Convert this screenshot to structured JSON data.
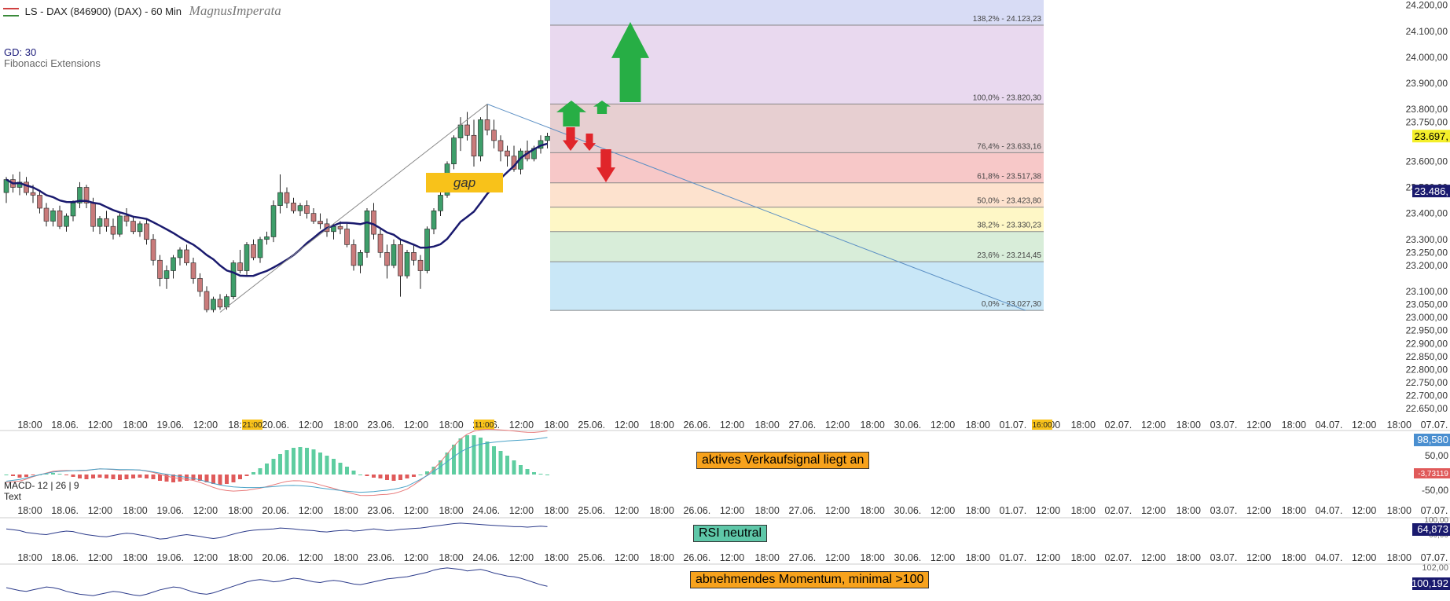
{
  "header": {
    "title": "LS - DAX (846900) (DAX) - 60 Min",
    "brand": "MagnusImperata",
    "indicator_gd": "GD: 30",
    "indicator_fib": "Fibonacci Extensions"
  },
  "annotations": {
    "gap": "gap",
    "sell_signal": "aktives Verkaufsignal liegt an",
    "rsi_note": "RSI neutral",
    "momentum_note": "abnehmendes Momentum, minimal >100"
  },
  "colors": {
    "up_candle": "#3e9e6a",
    "down_candle": "#c97b7b",
    "ma_line": "#1a1a6e",
    "fib_top": "#d8dcf5",
    "fib_100": "#e9d9ef",
    "fib_764": "#e7cfd1",
    "fib_618": "#f7c8c8",
    "fib_500": "#fde2ce",
    "fib_382": "#fef7c6",
    "fib_236": "#d8edd9",
    "fib_0": "#c9e7f7",
    "sell_note_bg": "#f7a21c",
    "rsi_note_bg": "#5ec7a8",
    "momentum_note_bg": "#f7a21c",
    "arrow_up": "#27ae45",
    "arrow_down": "#e0252a"
  },
  "chart_data": {
    "type": "candlestick",
    "price_axis": {
      "ticks": [
        "24.200,00",
        "24.100,00",
        "24.000,00",
        "23.900,00",
        "23.800,00",
        "23.750,00",
        "23.600,00",
        "23.500,00",
        "23.400,00",
        "23.300,00",
        "23.250,00",
        "23.200,00",
        "23.100,00",
        "23.050,00",
        "23.000,00",
        "22.950,00",
        "22.900,00",
        "22.850,00",
        "22.800,00",
        "22.750,00",
        "22.700,00",
        "22.650,00"
      ],
      "tick_values": [
        24200,
        24100,
        24000,
        23900,
        23800,
        23750,
        23600,
        23500,
        23400,
        23300,
        23250,
        23200,
        23100,
        23050,
        23000,
        22950,
        22900,
        22850,
        22800,
        22750,
        22700,
        22650
      ],
      "range": [
        22620,
        24220
      ],
      "last_price": "23.697,",
      "ma_value": "23.486,"
    },
    "time_axis": [
      "18:00",
      "18.06.",
      "12:00",
      "18:00",
      "19.06.",
      "12:00",
      "18:00",
      "20.06.",
      "12:00",
      "18:00",
      "23.06.",
      "12:00",
      "18:00",
      "24.06.",
      "12:00",
      "18:00",
      "25.06.",
      "12:00",
      "18:00",
      "26.06.",
      "12:00",
      "18:00",
      "27.06.",
      "12:00",
      "18:00",
      "30.06.",
      "12:00",
      "18:00",
      "01.07.",
      "12:00",
      "18:00",
      "02.07.",
      "12:00",
      "18:00",
      "03.07.",
      "12:00",
      "18:00",
      "04.07.",
      "12:00",
      "18:00",
      "07.07."
    ],
    "time_markers": [
      "21:00",
      "11:00",
      "16:00"
    ],
    "fib_levels": [
      {
        "label": "138,2% - 24.123,23",
        "value": 24123.23
      },
      {
        "label": "100,0% - 23.820,30",
        "value": 23820.3
      },
      {
        "label": "76,4% - 23.633,16",
        "value": 23633.16
      },
      {
        "label": "61,8% - 23.517,38",
        "value": 23517.38
      },
      {
        "label": "50,0% - 23.423,80",
        "value": 23423.8
      },
      {
        "label": "38,2% - 23.330,23",
        "value": 23330.23
      },
      {
        "label": "23,6% - 23.214,45",
        "value": 23214.45
      },
      {
        "label": "0,0% - 23.027,30",
        "value": 23027.3
      }
    ],
    "candles": [
      [
        23480,
        23540,
        23440,
        23530
      ],
      [
        23530,
        23550,
        23480,
        23500
      ],
      [
        23500,
        23560,
        23470,
        23520
      ],
      [
        23520,
        23540,
        23470,
        23480
      ],
      [
        23480,
        23510,
        23440,
        23470
      ],
      [
        23470,
        23490,
        23400,
        23420
      ],
      [
        23420,
        23440,
        23350,
        23370
      ],
      [
        23370,
        23420,
        23350,
        23410
      ],
      [
        23410,
        23430,
        23340,
        23350
      ],
      [
        23350,
        23400,
        23330,
        23390
      ],
      [
        23390,
        23450,
        23370,
        23440
      ],
      [
        23440,
        23520,
        23420,
        23500
      ],
      [
        23500,
        23510,
        23420,
        23440
      ],
      [
        23440,
        23460,
        23330,
        23350
      ],
      [
        23350,
        23390,
        23320,
        23380
      ],
      [
        23380,
        23410,
        23330,
        23350
      ],
      [
        23350,
        23380,
        23300,
        23320
      ],
      [
        23320,
        23400,
        23310,
        23390
      ],
      [
        23390,
        23420,
        23350,
        23370
      ],
      [
        23370,
        23390,
        23320,
        23330
      ],
      [
        23330,
        23370,
        23310,
        23360
      ],
      [
        23360,
        23380,
        23280,
        23300
      ],
      [
        23300,
        23320,
        23200,
        23220
      ],
      [
        23220,
        23240,
        23120,
        23150
      ],
      [
        23150,
        23200,
        23110,
        23180
      ],
      [
        23180,
        23240,
        23150,
        23230
      ],
      [
        23230,
        23270,
        23200,
        23260
      ],
      [
        23260,
        23280,
        23200,
        23210
      ],
      [
        23210,
        23230,
        23130,
        23150
      ],
      [
        23150,
        23170,
        23080,
        23100
      ],
      [
        23100,
        23120,
        23020,
        23030
      ],
      [
        23030,
        23080,
        23020,
        23070
      ],
      [
        23070,
        23090,
        23030,
        23040
      ],
      [
        23040,
        23090,
        23030,
        23080
      ],
      [
        23080,
        23220,
        23070,
        23210
      ],
      [
        23210,
        23260,
        23170,
        23180
      ],
      [
        23180,
        23290,
        23160,
        23280
      ],
      [
        23280,
        23300,
        23220,
        23230
      ],
      [
        23230,
        23310,
        23210,
        23300
      ],
      [
        23300,
        23330,
        23280,
        23310
      ],
      [
        23310,
        23450,
        23290,
        23430
      ],
      [
        23430,
        23550,
        23400,
        23480
      ],
      [
        23480,
        23500,
        23420,
        23440
      ],
      [
        23440,
        23460,
        23400,
        23410
      ],
      [
        23410,
        23440,
        23390,
        23430
      ],
      [
        23430,
        23450,
        23380,
        23400
      ],
      [
        23400,
        23420,
        23360,
        23370
      ],
      [
        23370,
        23400,
        23340,
        23360
      ],
      [
        23360,
        23380,
        23310,
        23330
      ],
      [
        23330,
        23360,
        23300,
        23350
      ],
      [
        23350,
        23370,
        23320,
        23340
      ],
      [
        23340,
        23360,
        23270,
        23280
      ],
      [
        23280,
        23300,
        23180,
        23200
      ],
      [
        23200,
        23260,
        23170,
        23250
      ],
      [
        23250,
        23420,
        23230,
        23410
      ],
      [
        23410,
        23440,
        23300,
        23320
      ],
      [
        23320,
        23340,
        23230,
        23250
      ],
      [
        23250,
        23280,
        23150,
        23200
      ],
      [
        23200,
        23300,
        23190,
        23280
      ],
      [
        23280,
        23300,
        23080,
        23160
      ],
      [
        23160,
        23260,
        23150,
        23250
      ],
      [
        23250,
        23280,
        23200,
        23220
      ],
      [
        23220,
        23240,
        23110,
        23180
      ],
      [
        23180,
        23350,
        23170,
        23340
      ],
      [
        23340,
        23420,
        23320,
        23410
      ],
      [
        23410,
        23490,
        23390,
        23470
      ],
      [
        23470,
        23600,
        23460,
        23590
      ],
      [
        23590,
        23700,
        23570,
        23690
      ],
      [
        23690,
        23770,
        23640,
        23740
      ],
      [
        23740,
        23790,
        23680,
        23700
      ],
      [
        23700,
        23760,
        23580,
        23620
      ],
      [
        23620,
        23770,
        23600,
        23760
      ],
      [
        23760,
        23820,
        23700,
        23720
      ],
      [
        23720,
        23760,
        23650,
        23680
      ],
      [
        23680,
        23700,
        23600,
        23640
      ],
      [
        23640,
        23660,
        23580,
        23620
      ],
      [
        23620,
        23660,
        23560,
        23570
      ],
      [
        23570,
        23650,
        23550,
        23640
      ],
      [
        23640,
        23680,
        23600,
        23610
      ],
      [
        23610,
        23660,
        23600,
        23650
      ],
      [
        23650,
        23700,
        23630,
        23680
      ],
      [
        23680,
        23710,
        23650,
        23697
      ]
    ],
    "macd": {
      "label": "MACD- 12 | 26 | 9",
      "ticks": [
        "98,580",
        "50,00",
        "-3,73119",
        "-50,00"
      ],
      "histogram": [
        0,
        -2,
        -4,
        -3,
        -1,
        0,
        1,
        2,
        1,
        -1,
        -3,
        -5,
        -6,
        -5,
        -4,
        -5,
        -6,
        -7,
        -6,
        -5,
        -4,
        -5,
        -6,
        -8,
        -9,
        -10,
        -9,
        -8,
        -7,
        -8,
        -10,
        -12,
        -13,
        -12,
        -10,
        -6,
        -2,
        3,
        8,
        14,
        20,
        26,
        31,
        34,
        35,
        34,
        32,
        28,
        24,
        20,
        15,
        10,
        5,
        0,
        -2,
        -4,
        -5,
        -7,
        -8,
        -7,
        -5,
        -3,
        0,
        4,
        10,
        18,
        28,
        38,
        46,
        50,
        50,
        47,
        42,
        36,
        30,
        24,
        18,
        12,
        7,
        3,
        1,
        0
      ]
    },
    "rsi": {
      "value": "64,873",
      "ticks": [
        "100,00",
        "60,00"
      ],
      "values": [
        60,
        58,
        56,
        52,
        50,
        48,
        47,
        50,
        53,
        55,
        54,
        50,
        47,
        45,
        43,
        42,
        45,
        48,
        50,
        49,
        46,
        44,
        40,
        37,
        38,
        42,
        45,
        47,
        45,
        43,
        40,
        38,
        40,
        44,
        48,
        52,
        55,
        57,
        58,
        59,
        60,
        62,
        61,
        60,
        58,
        57,
        56,
        54,
        53,
        55,
        56,
        57,
        55,
        56,
        58,
        60,
        58,
        56,
        57,
        59,
        60,
        61,
        62,
        64,
        66,
        68,
        70,
        72,
        73,
        72,
        71,
        70,
        69,
        68,
        67,
        66,
        65,
        65,
        64,
        65,
        66,
        65
      ]
    },
    "momentum": {
      "value": "100,192",
      "tick": "102,00",
      "values": [
        100,
        99.8,
        99.6,
        99.5,
        99.7,
        99.9,
        100.1,
        100.0,
        99.8,
        99.5,
        99.3,
        99.1,
        99.0,
        98.9,
        99.1,
        99.3,
        99.5,
        99.4,
        99.2,
        99.0,
        98.9,
        99.1,
        99.4,
        99.7,
        99.9,
        100.1,
        100.0,
        99.7,
        99.4,
        99.2,
        99.1,
        99.3,
        99.6,
        99.9,
        100.2,
        100.5,
        100.8,
        101.0,
        101.1,
        101.0,
        100.8,
        100.9,
        101.1,
        101.3,
        101.2,
        101.0,
        100.8,
        100.7,
        100.9,
        101.0,
        100.9,
        100.7,
        100.5,
        100.4,
        100.6,
        100.8,
        101.0,
        101.2,
        101.3,
        101.4,
        101.5,
        101.7,
        101.9,
        102.1,
        102.4,
        102.6,
        102.7,
        102.6,
        102.5,
        102.3,
        102.4,
        102.5,
        102.3,
        102.0,
        101.8,
        101.6,
        101.5,
        101.3,
        101.0,
        100.7,
        100.4,
        100.2
      ]
    }
  }
}
